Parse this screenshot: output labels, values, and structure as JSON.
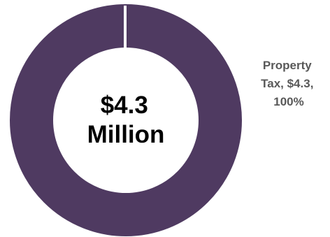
{
  "chart_data": {
    "type": "pie",
    "donut": true,
    "center_text": [
      "$4.3",
      "Million"
    ],
    "slices": [
      {
        "name": "Property Tax",
        "value": 4.3,
        "percent": 100,
        "label_lines": [
          "Property",
          "Tax, $4.3,",
          "100%"
        ],
        "color": "#4f3a61"
      }
    ],
    "total": 4.3
  }
}
